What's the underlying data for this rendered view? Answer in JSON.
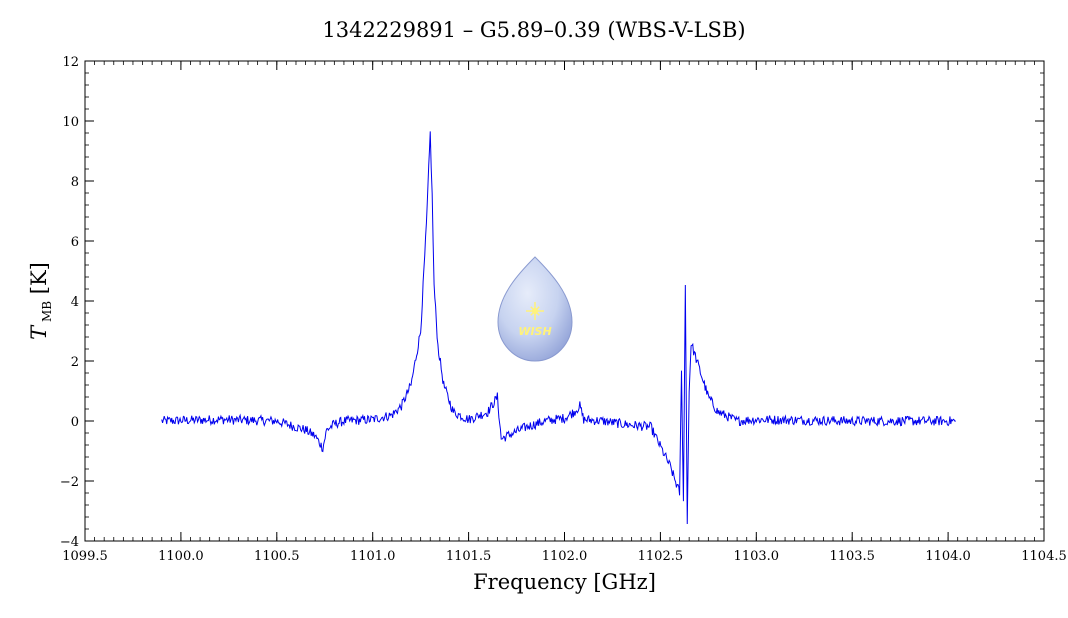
{
  "chart_data": {
    "type": "line",
    "title": "1342229891 – G5.89–0.39 (WBS-V-LSB)",
    "xlabel": "Frequency [GHz]",
    "ylabel_main": "T",
    "ylabel_sub": "MB",
    "ylabel_unit": "[K]",
    "xlim": [
      1099.5,
      1104.5
    ],
    "ylim": [
      -4,
      12
    ],
    "x_ticks": [
      "1099.5",
      "1100.0",
      "1100.5",
      "1101.0",
      "1101.5",
      "1102.0",
      "1102.5",
      "1103.0",
      "1103.5",
      "1104.0",
      "1104.5"
    ],
    "y_ticks": [
      "−4",
      "−2",
      "0",
      "2",
      "4",
      "6",
      "8",
      "10",
      "12"
    ],
    "grid": false,
    "series_color": "#0000ee",
    "series": [
      {
        "x": [
          1099.9,
          1100.2,
          1100.5,
          1100.65,
          1100.7,
          1100.74,
          1100.76,
          1100.8,
          1100.85,
          1101.0,
          1101.1,
          1101.15,
          1101.2,
          1101.25,
          1101.28,
          1101.3,
          1101.31,
          1101.32,
          1101.34,
          1101.37,
          1101.42,
          1101.5,
          1101.6,
          1101.65,
          1101.67,
          1101.7,
          1101.8,
          1101.9,
          1102.0,
          1102.05,
          1102.08,
          1102.1,
          1102.2,
          1102.3,
          1102.45,
          1102.55,
          1102.6,
          1102.61,
          1102.62,
          1102.63,
          1102.64,
          1102.65,
          1102.66,
          1102.7,
          1102.75,
          1102.8,
          1102.9,
          1103.0,
          1103.5,
          1104.04
        ],
        "y": [
          0.0,
          0.05,
          0.0,
          -0.3,
          -0.5,
          -0.9,
          -0.3,
          -0.1,
          0.0,
          0.05,
          0.2,
          0.5,
          1.2,
          3.0,
          6.5,
          9.6,
          7.5,
          4.5,
          2.5,
          1.2,
          0.3,
          0.05,
          0.3,
          0.8,
          -0.6,
          -0.5,
          -0.2,
          0.0,
          0.1,
          0.3,
          0.5,
          0.05,
          0.0,
          -0.1,
          -0.2,
          -1.5,
          -2.4,
          1.6,
          -2.6,
          4.5,
          -3.3,
          1.0,
          2.6,
          1.8,
          0.8,
          0.3,
          0.0,
          0.05,
          0.0,
          0.0
        ]
      }
    ]
  },
  "logo": {
    "text": "WISH",
    "color_top": "#c7d3f0",
    "color_bottom": "#8e9fd6",
    "star_color": "#fff27a"
  }
}
